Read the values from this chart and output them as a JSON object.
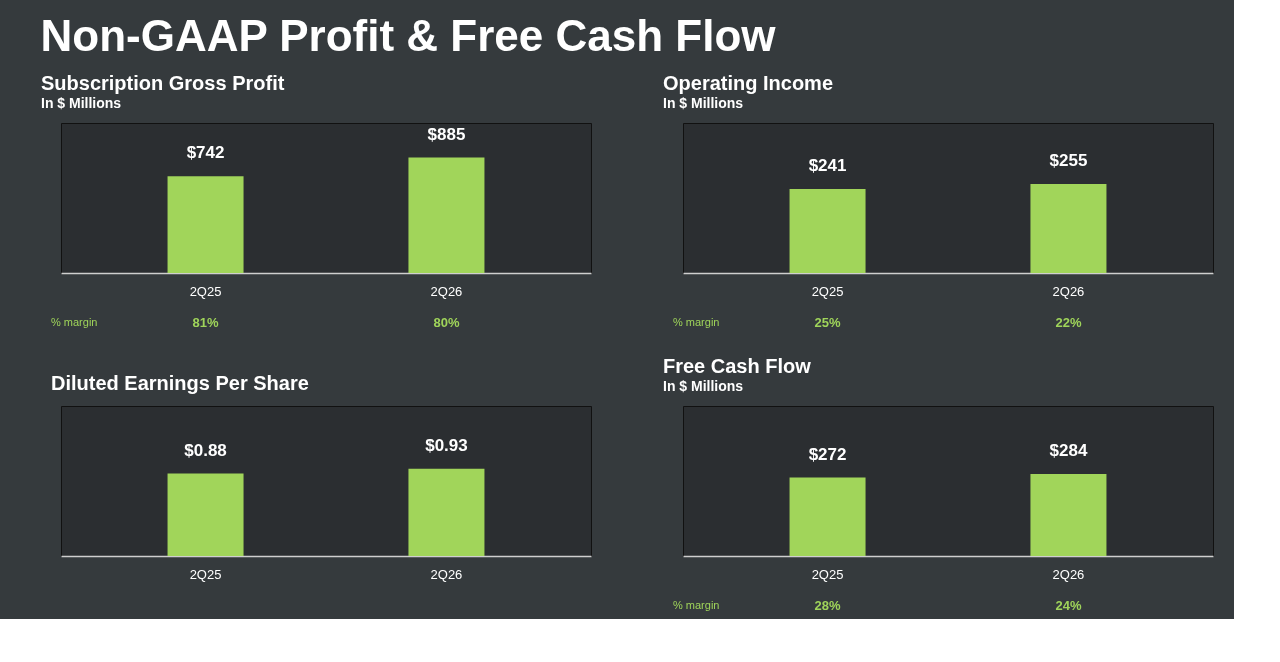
{
  "chart_data": [
    {
      "type": "other",
      "title": "Non-GAAP Profit & Free Cash Flow"
    },
    {
      "type": "bar",
      "title": "Subscription Gross Profit",
      "subtitle": "In $ Millions",
      "categories": [
        "2Q25",
        "2Q26"
      ],
      "values": [
        742,
        885
      ],
      "value_labels": [
        "$742",
        "$885"
      ],
      "color": "#a1d55a",
      "ylim": [
        0,
        1150
      ],
      "tick_labels": "x",
      "annotations": [
        "% margin",
        "81%",
        "80%"
      ]
    },
    {
      "type": "bar",
      "title": "Operating Income",
      "subtitle": "In $ Millions",
      "categories": [
        "2Q25",
        "2Q26"
      ],
      "values": [
        241,
        255
      ],
      "value_labels": [
        "$241",
        "$255"
      ],
      "color": "#a1d55a",
      "ylim": [
        0,
        430
      ],
      "tick_labels": "x",
      "annotations": [
        "% margin",
        "25%",
        "22%"
      ]
    },
    {
      "type": "bar",
      "title": "Diluted Earnings Per Share",
      "categories": [
        "2Q25",
        "2Q26"
      ],
      "values": [
        0.88,
        0.93
      ],
      "value_labels": [
        "$0.88",
        "$0.93"
      ],
      "color": "#a1d55a",
      "ylim": [
        0,
        1.6
      ],
      "tick_labels": "x"
    },
    {
      "type": "bar",
      "title": "Free Cash Flow",
      "subtitle": "In $ Millions",
      "categories": [
        "2Q25",
        "2Q26"
      ],
      "values": [
        272,
        284
      ],
      "value_labels": [
        "$272",
        "$284"
      ],
      "color": "#a1d55a",
      "ylim": [
        0,
        520
      ],
      "tick_labels": "x",
      "annotations": [
        "% margin",
        "28%",
        "24%"
      ]
    }
  ]
}
